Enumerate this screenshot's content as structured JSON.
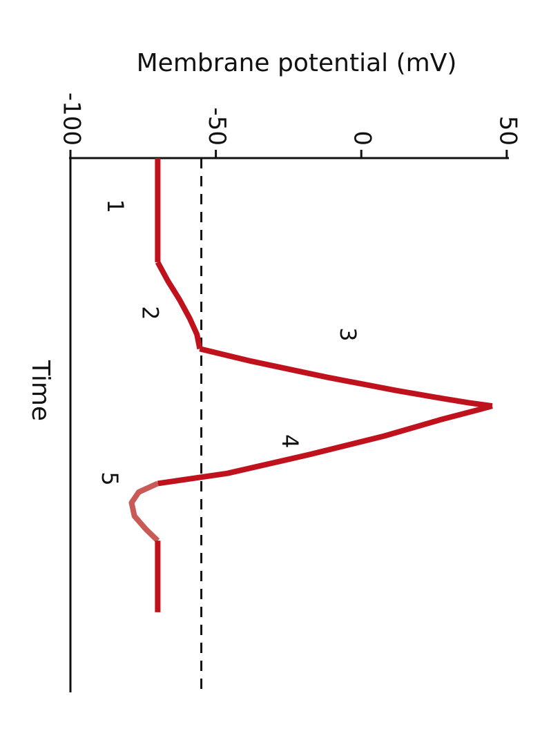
{
  "chart_data": {
    "type": "line",
    "orientation": "rotated-90-clockwise",
    "title": "",
    "ylabel": "Membrane potential (mV)",
    "xlabel": "Time",
    "ylim": [
      -100,
      50
    ],
    "yticks": [
      -100,
      -50,
      0,
      50
    ],
    "ytick_labels": [
      "-100",
      "-50",
      "0",
      "50"
    ],
    "xlim": [
      0,
      100
    ],
    "threshold": -55,
    "threshold_style": "dashed",
    "colors": {
      "trace": "#c0121c",
      "hyperpolarization": "#c95a57",
      "axis": "#111111"
    },
    "series": [
      {
        "segment": "rest",
        "label": "1",
        "x": [
          0,
          19.5
        ],
        "y": [
          -70,
          -70
        ]
      },
      {
        "segment": "depolarization",
        "label": "2",
        "x": [
          19.5,
          23,
          26.5,
          30,
          33,
          35.7
        ],
        "y": [
          -70,
          -66.5,
          -62.5,
          -59,
          -56.5,
          -55.5
        ]
      },
      {
        "segment": "rising-phase",
        "label": "3",
        "x": [
          35.7,
          38,
          41,
          43.5,
          45,
          45.8,
          46.4
        ],
        "y": [
          -55.5,
          -38,
          -12,
          12,
          28,
          37,
          45
        ]
      },
      {
        "segment": "repolarization",
        "label": "4",
        "x": [
          46.4,
          47,
          49,
          52,
          55.5,
          59,
          60.9
        ],
        "y": [
          45,
          41,
          27,
          8,
          -18,
          -46,
          -70
        ]
      },
      {
        "segment": "hyperpolarization",
        "label": "5",
        "x": [
          60.9,
          62.5,
          64.5,
          67,
          69.5,
          71.6
        ],
        "y": [
          -70,
          -76.5,
          -79,
          -78,
          -74,
          -70
        ]
      },
      {
        "segment": "return-to-rest",
        "label": "",
        "x": [
          71.6,
          85
        ],
        "y": [
          -70,
          -70
        ]
      }
    ],
    "phase_labels": [
      {
        "text": "1",
        "x": 9,
        "y": -85
      },
      {
        "text": "2",
        "x": 29,
        "y": -73
      },
      {
        "text": "3",
        "x": 33,
        "y": -5
      },
      {
        "text": "4",
        "x": 53,
        "y": -25
      },
      {
        "text": "5",
        "x": 60,
        "y": -87
      }
    ]
  }
}
